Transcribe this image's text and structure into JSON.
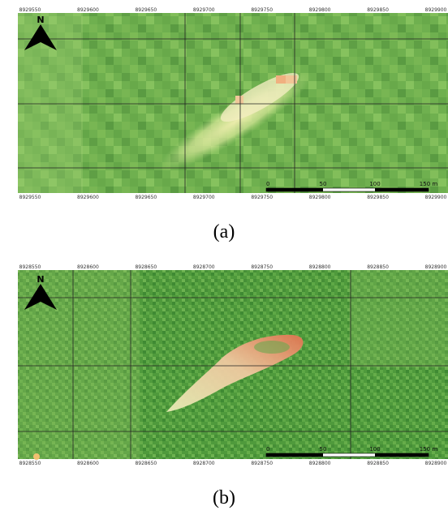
{
  "panels": [
    {
      "label": "(a)",
      "north": "N",
      "top_coords": [
        "8929550",
        "8929600",
        "8929650",
        "8929700",
        "8929750",
        "8929800",
        "8929850",
        "8929900"
      ],
      "bottom_coords": [
        "8929550",
        "8929600",
        "8929650",
        "8929700",
        "8929750",
        "8929800",
        "8929850",
        "8929900"
      ],
      "scale": [
        "0",
        "50",
        "100",
        "150 m"
      ]
    },
    {
      "label": "(b)",
      "north": "N",
      "top_coords": [
        "8928550",
        "8928600",
        "8928650",
        "8928700",
        "8928750",
        "8928800",
        "8928850",
        "8928900"
      ],
      "bottom_coords": [
        "8928550",
        "8928600",
        "8928650",
        "8928700",
        "8928750",
        "8928800",
        "8928850",
        "8928900"
      ],
      "scale": [
        "0",
        "50",
        "100",
        "150 m"
      ]
    }
  ]
}
